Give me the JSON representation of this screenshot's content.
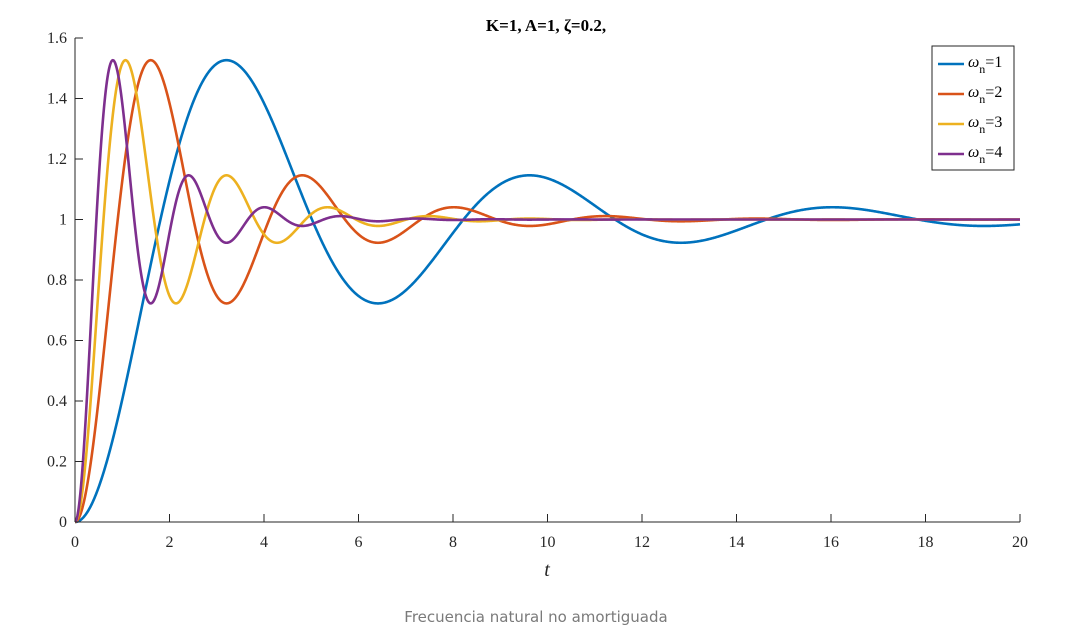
{
  "caption": "Frecuencia natural no amortiguada",
  "chart_data": {
    "type": "line",
    "title": "K=1, A=1, ζ=0.2,",
    "xlabel": "t",
    "ylabel": "",
    "xlim": [
      0,
      20
    ],
    "ylim": [
      0,
      1.6
    ],
    "xticks": [
      0,
      2,
      4,
      6,
      8,
      10,
      12,
      14,
      16,
      18,
      20
    ],
    "yticks": [
      0,
      0.2,
      0.4,
      0.6,
      0.8,
      1,
      1.2,
      1.4,
      1.6
    ],
    "grid": false,
    "legend_position": "top-right",
    "params": {
      "K": 1,
      "A": 1,
      "zeta": 0.2
    },
    "series": [
      {
        "name_symbol": "ω",
        "name_sub": "n",
        "name_suffix": "=1",
        "wn": 1,
        "color": "#0072BD",
        "x": [
          0,
          0.5,
          1,
          1.5,
          2,
          2.5,
          3,
          3.21,
          3.5,
          4,
          4.5,
          5,
          5.5,
          6,
          6.41,
          7,
          7.5,
          8,
          8.5,
          9,
          9.62,
          10,
          11,
          12,
          12.83,
          14,
          15,
          16.03,
          17,
          18,
          19.24,
          20
        ],
        "y": [
          0,
          0.116,
          0.397,
          0.744,
          1.077,
          1.334,
          1.486,
          1.527,
          1.503,
          1.38,
          1.19,
          0.993,
          0.835,
          0.744,
          0.723,
          0.767,
          0.849,
          0.948,
          1.04,
          1.111,
          1.15,
          1.143,
          1.067,
          0.964,
          0.923,
          0.958,
          1.009,
          1.04,
          1.023,
          0.991,
          0.975,
          0.985
        ]
      },
      {
        "name_symbol": "ω",
        "name_sub": "n",
        "name_suffix": "=2",
        "wn": 2,
        "color": "#D95319",
        "x": [
          0,
          0.25,
          0.5,
          0.75,
          1,
          1.25,
          1.5,
          1.6,
          1.75,
          2,
          2.25,
          2.5,
          2.75,
          3,
          3.21,
          3.5,
          4,
          4.5,
          4.81,
          5,
          5.5,
          6,
          6.41,
          7,
          8,
          8.02,
          9,
          9.62,
          10,
          11,
          11.22,
          12,
          13,
          14,
          15,
          16,
          17,
          18,
          19,
          20
        ],
        "y": [
          0,
          0.116,
          0.397,
          0.744,
          1.077,
          1.334,
          1.486,
          1.527,
          1.503,
          1.38,
          1.19,
          0.993,
          0.835,
          0.744,
          0.723,
          0.767,
          0.948,
          1.111,
          1.143,
          1.13,
          1.045,
          0.964,
          0.923,
          0.946,
          1.04,
          1.04,
          0.991,
          0.975,
          0.985,
          1.01,
          1.012,
          1.004,
          0.996,
          1.001,
          1.001,
          1.0,
          1.0,
          1.0,
          1.0,
          1.0
        ]
      },
      {
        "name_symbol": "ω",
        "name_sub": "n",
        "name_suffix": "=3",
        "wn": 3,
        "color": "#EDB120",
        "x": [
          0,
          0.17,
          0.33,
          0.5,
          0.67,
          0.83,
          1,
          1.07,
          1.17,
          1.33,
          1.5,
          1.67,
          1.83,
          2,
          2.14,
          2.33,
          2.67,
          3,
          3.21,
          3.5,
          4,
          4.28,
          4.5,
          5,
          5.35,
          5.5,
          6,
          6.41,
          7,
          7.48,
          8,
          9,
          10,
          11,
          12,
          13,
          14,
          15,
          16,
          17,
          18,
          19,
          20
        ],
        "y": [
          0,
          0.116,
          0.397,
          0.744,
          1.077,
          1.334,
          1.486,
          1.527,
          1.503,
          1.38,
          1.19,
          0.993,
          0.835,
          0.744,
          0.723,
          0.767,
          0.948,
          1.111,
          1.143,
          1.111,
          0.964,
          0.923,
          0.935,
          1.01,
          1.04,
          1.036,
          0.993,
          0.975,
          0.989,
          1.009,
          1.01,
          0.998,
          0.998,
          1.0,
          1.0,
          1.0,
          1.0,
          1.0,
          1.0,
          1.0,
          1.0,
          1.0,
          1.0
        ]
      },
      {
        "name_symbol": "ω",
        "name_sub": "n",
        "name_suffix": "=4",
        "wn": 4,
        "color": "#7E2F8E",
        "x": [
          0,
          0.125,
          0.25,
          0.375,
          0.5,
          0.625,
          0.75,
          0.8,
          0.875,
          1,
          1.125,
          1.25,
          1.375,
          1.5,
          1.6,
          1.75,
          2,
          2.25,
          2.41,
          2.5,
          2.75,
          3,
          3.21,
          3.5,
          4,
          4.5,
          5,
          5.5,
          6,
          6.5,
          7,
          8,
          9,
          10,
          11,
          12,
          13,
          14,
          15,
          16,
          17,
          18,
          19,
          20
        ],
        "y": [
          0,
          0.116,
          0.397,
          0.744,
          1.077,
          1.334,
          1.486,
          1.527,
          1.503,
          1.38,
          1.19,
          0.993,
          0.835,
          0.744,
          0.723,
          0.767,
          0.948,
          1.111,
          1.143,
          1.13,
          1.045,
          0.964,
          0.923,
          0.946,
          1.04,
          0.985,
          0.992,
          1.008,
          0.997,
          0.999,
          1.001,
          1.0,
          1.0,
          1.0,
          1.0,
          1.0,
          1.0,
          1.0,
          1.0,
          1.0,
          1.0,
          1.0,
          1.0,
          1.0
        ]
      }
    ]
  }
}
